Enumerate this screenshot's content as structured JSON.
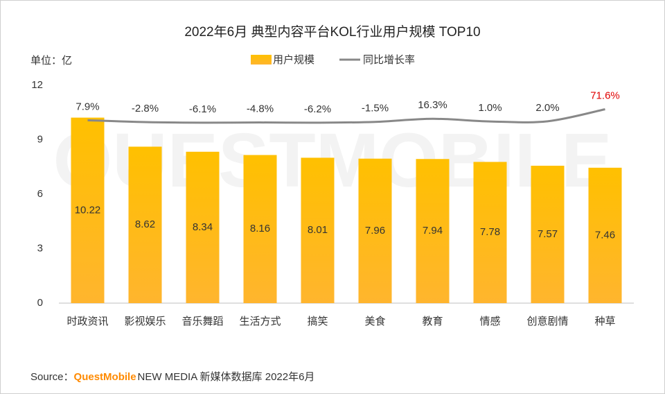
{
  "chart_data": {
    "type": "bar_line",
    "title": "2022年6月 典型内容平台KOL行业用户规模 TOP10",
    "unit_label": "单位：亿",
    "watermark": "QUESTMOBILE",
    "categories": [
      "时政资讯",
      "影视娱乐",
      "音乐舞蹈",
      "生活方式",
      "搞笑",
      "美食",
      "教育",
      "情感",
      "创意剧情",
      "种草"
    ],
    "series": [
      {
        "name": "用户规模",
        "type": "bar",
        "color": "#ffc000",
        "color_bottom": "#ffb52e",
        "values": [
          10.22,
          8.62,
          8.34,
          8.16,
          8.01,
          7.96,
          7.94,
          7.78,
          7.57,
          7.46
        ]
      },
      {
        "name": "同比增长率",
        "type": "line",
        "axis": "y2",
        "color": "#888888",
        "values": [
          7.9,
          -2.8,
          -6.1,
          -4.8,
          -6.2,
          -1.5,
          16.3,
          1.0,
          2.0,
          71.6
        ],
        "value_labels": [
          "7.9%",
          "-2.8%",
          "-6.1%",
          "-4.8%",
          "-6.2%",
          "-1.5%",
          "16.3%",
          "1.0%",
          "2.0%",
          "71.6%"
        ],
        "label_colors": [
          "#333333",
          "#333333",
          "#333333",
          "#333333",
          "#333333",
          "#333333",
          "#333333",
          "#333333",
          "#333333",
          "#e00000"
        ]
      }
    ],
    "ylim": [
      0,
      12
    ],
    "yticks": [
      0,
      3,
      6,
      9,
      12
    ],
    "y2lim": [
      -1050,
      210
    ],
    "grid": false,
    "legend": "top",
    "source_label": "Source：",
    "source_brand": "QuestMobile",
    "source_brand_color": "#ff8a00",
    "source_rest": "NEW MEDIA 新媒体数据库 2022年6月"
  }
}
